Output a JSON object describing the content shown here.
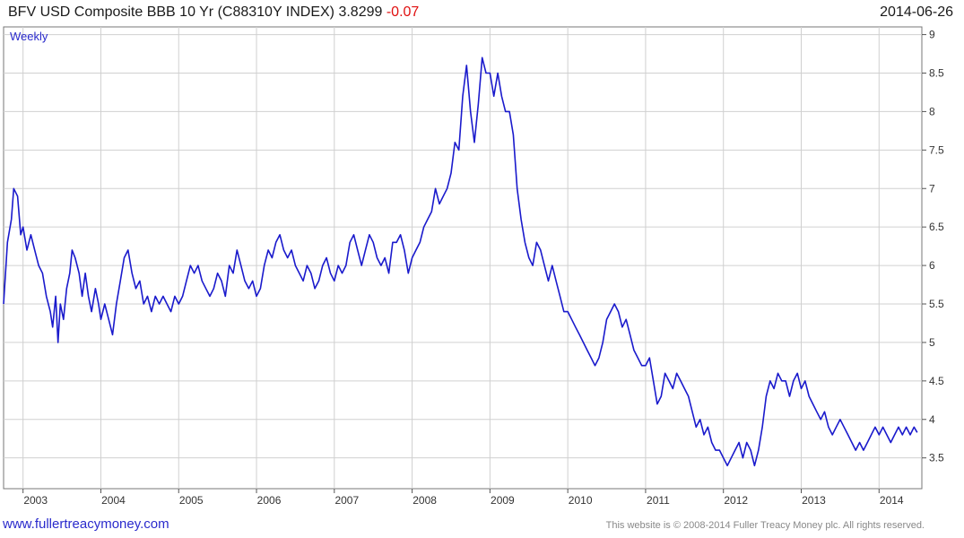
{
  "header": {
    "title": "BFV USD Composite BBB 10 Yr (C88310Y INDEX)",
    "last": "3.8299",
    "change": "-0.07",
    "date": "2014-06-26"
  },
  "footer": {
    "left": "www.fullertreacymoney.com",
    "right": "This website is © 2008-2014 Fuller Treacy Money plc. All rights reserved."
  },
  "colors": {
    "series": "#1a1acc",
    "grid": "#d0d0d0",
    "change": "#e01010"
  },
  "chart_data": {
    "type": "line",
    "period_label": "Weekly",
    "x_tick_labels": [
      "2003",
      "2004",
      "2005",
      "2006",
      "2007",
      "2008",
      "2009",
      "2010",
      "2011",
      "2012",
      "2013",
      "2014"
    ],
    "y_tick_labels": [
      "3.5",
      "4",
      "4.5",
      "5",
      "5.5",
      "6",
      "6.5",
      "7",
      "7.5",
      "8",
      "8.5",
      "9"
    ],
    "ylim": [
      3.1,
      9.1
    ],
    "xlim": [
      2002.75,
      2014.55
    ],
    "grid": true,
    "series": [
      {
        "values": [
          [
            2002.75,
            5.5
          ],
          [
            2002.8,
            6.3
          ],
          [
            2002.85,
            6.6
          ],
          [
            2002.88,
            7.0
          ],
          [
            2002.93,
            6.9
          ],
          [
            2002.97,
            6.4
          ],
          [
            2003.0,
            6.5
          ],
          [
            2003.05,
            6.2
          ],
          [
            2003.1,
            6.4
          ],
          [
            2003.15,
            6.2
          ],
          [
            2003.2,
            6.0
          ],
          [
            2003.25,
            5.9
          ],
          [
            2003.3,
            5.6
          ],
          [
            2003.35,
            5.4
          ],
          [
            2003.38,
            5.2
          ],
          [
            2003.42,
            5.6
          ],
          [
            2003.45,
            5.0
          ],
          [
            2003.48,
            5.5
          ],
          [
            2003.52,
            5.3
          ],
          [
            2003.56,
            5.7
          ],
          [
            2003.6,
            5.9
          ],
          [
            2003.63,
            6.2
          ],
          [
            2003.67,
            6.1
          ],
          [
            2003.72,
            5.9
          ],
          [
            2003.76,
            5.6
          ],
          [
            2003.8,
            5.9
          ],
          [
            2003.84,
            5.6
          ],
          [
            2003.88,
            5.4
          ],
          [
            2003.93,
            5.7
          ],
          [
            2003.97,
            5.5
          ],
          [
            2004.0,
            5.3
          ],
          [
            2004.05,
            5.5
          ],
          [
            2004.1,
            5.3
          ],
          [
            2004.15,
            5.1
          ],
          [
            2004.2,
            5.5
          ],
          [
            2004.25,
            5.8
          ],
          [
            2004.3,
            6.1
          ],
          [
            2004.35,
            6.2
          ],
          [
            2004.4,
            5.9
          ],
          [
            2004.45,
            5.7
          ],
          [
            2004.5,
            5.8
          ],
          [
            2004.55,
            5.5
          ],
          [
            2004.6,
            5.6
          ],
          [
            2004.65,
            5.4
          ],
          [
            2004.7,
            5.6
          ],
          [
            2004.75,
            5.5
          ],
          [
            2004.8,
            5.6
          ],
          [
            2004.85,
            5.5
          ],
          [
            2004.9,
            5.4
          ],
          [
            2004.95,
            5.6
          ],
          [
            2005.0,
            5.5
          ],
          [
            2005.05,
            5.6
          ],
          [
            2005.1,
            5.8
          ],
          [
            2005.15,
            6.0
          ],
          [
            2005.2,
            5.9
          ],
          [
            2005.25,
            6.0
          ],
          [
            2005.3,
            5.8
          ],
          [
            2005.35,
            5.7
          ],
          [
            2005.4,
            5.6
          ],
          [
            2005.45,
            5.7
          ],
          [
            2005.5,
            5.9
          ],
          [
            2005.55,
            5.8
          ],
          [
            2005.6,
            5.6
          ],
          [
            2005.65,
            6.0
          ],
          [
            2005.7,
            5.9
          ],
          [
            2005.75,
            6.2
          ],
          [
            2005.8,
            6.0
          ],
          [
            2005.85,
            5.8
          ],
          [
            2005.9,
            5.7
          ],
          [
            2005.95,
            5.8
          ],
          [
            2006.0,
            5.6
          ],
          [
            2006.05,
            5.7
          ],
          [
            2006.1,
            6.0
          ],
          [
            2006.15,
            6.2
          ],
          [
            2006.2,
            6.1
          ],
          [
            2006.25,
            6.3
          ],
          [
            2006.3,
            6.4
          ],
          [
            2006.35,
            6.2
          ],
          [
            2006.4,
            6.1
          ],
          [
            2006.45,
            6.2
          ],
          [
            2006.5,
            6.0
          ],
          [
            2006.55,
            5.9
          ],
          [
            2006.6,
            5.8
          ],
          [
            2006.65,
            6.0
          ],
          [
            2006.7,
            5.9
          ],
          [
            2006.75,
            5.7
          ],
          [
            2006.8,
            5.8
          ],
          [
            2006.85,
            6.0
          ],
          [
            2006.9,
            6.1
          ],
          [
            2006.95,
            5.9
          ],
          [
            2007.0,
            5.8
          ],
          [
            2007.05,
            6.0
          ],
          [
            2007.1,
            5.9
          ],
          [
            2007.15,
            6.0
          ],
          [
            2007.2,
            6.3
          ],
          [
            2007.25,
            6.4
          ],
          [
            2007.3,
            6.2
          ],
          [
            2007.35,
            6.0
          ],
          [
            2007.4,
            6.2
          ],
          [
            2007.45,
            6.4
          ],
          [
            2007.5,
            6.3
          ],
          [
            2007.55,
            6.1
          ],
          [
            2007.6,
            6.0
          ],
          [
            2007.65,
            6.1
          ],
          [
            2007.7,
            5.9
          ],
          [
            2007.75,
            6.3
          ],
          [
            2007.8,
            6.3
          ],
          [
            2007.85,
            6.4
          ],
          [
            2007.9,
            6.2
          ],
          [
            2007.95,
            5.9
          ],
          [
            2008.0,
            6.1
          ],
          [
            2008.05,
            6.2
          ],
          [
            2008.1,
            6.3
          ],
          [
            2008.15,
            6.5
          ],
          [
            2008.2,
            6.6
          ],
          [
            2008.25,
            6.7
          ],
          [
            2008.3,
            7.0
          ],
          [
            2008.35,
            6.8
          ],
          [
            2008.4,
            6.9
          ],
          [
            2008.45,
            7.0
          ],
          [
            2008.5,
            7.2
          ],
          [
            2008.55,
            7.6
          ],
          [
            2008.6,
            7.5
          ],
          [
            2008.65,
            8.2
          ],
          [
            2008.7,
            8.6
          ],
          [
            2008.75,
            8.0
          ],
          [
            2008.8,
            7.6
          ],
          [
            2008.85,
            8.1
          ],
          [
            2008.9,
            8.7
          ],
          [
            2008.95,
            8.5
          ],
          [
            2009.0,
            8.5
          ],
          [
            2009.05,
            8.2
          ],
          [
            2009.1,
            8.5
          ],
          [
            2009.15,
            8.2
          ],
          [
            2009.2,
            8.0
          ],
          [
            2009.25,
            8.0
          ],
          [
            2009.3,
            7.7
          ],
          [
            2009.35,
            7.0
          ],
          [
            2009.4,
            6.6
          ],
          [
            2009.45,
            6.3
          ],
          [
            2009.5,
            6.1
          ],
          [
            2009.55,
            6.0
          ],
          [
            2009.6,
            6.3
          ],
          [
            2009.65,
            6.2
          ],
          [
            2009.7,
            6.0
          ],
          [
            2009.75,
            5.8
          ],
          [
            2009.8,
            6.0
          ],
          [
            2009.85,
            5.8
          ],
          [
            2009.9,
            5.6
          ],
          [
            2009.95,
            5.4
          ],
          [
            2010.0,
            5.4
          ],
          [
            2010.05,
            5.3
          ],
          [
            2010.1,
            5.2
          ],
          [
            2010.15,
            5.1
          ],
          [
            2010.2,
            5.0
          ],
          [
            2010.25,
            4.9
          ],
          [
            2010.3,
            4.8
          ],
          [
            2010.35,
            4.7
          ],
          [
            2010.4,
            4.8
          ],
          [
            2010.45,
            5.0
          ],
          [
            2010.5,
            5.3
          ],
          [
            2010.55,
            5.4
          ],
          [
            2010.6,
            5.5
          ],
          [
            2010.65,
            5.4
          ],
          [
            2010.7,
            5.2
          ],
          [
            2010.75,
            5.3
          ],
          [
            2010.8,
            5.1
          ],
          [
            2010.85,
            4.9
          ],
          [
            2010.9,
            4.8
          ],
          [
            2010.95,
            4.7
          ],
          [
            2011.0,
            4.7
          ],
          [
            2011.05,
            4.8
          ],
          [
            2011.1,
            4.5
          ],
          [
            2011.15,
            4.2
          ],
          [
            2011.2,
            4.3
          ],
          [
            2011.25,
            4.6
          ],
          [
            2011.3,
            4.5
          ],
          [
            2011.35,
            4.4
          ],
          [
            2011.4,
            4.6
          ],
          [
            2011.45,
            4.5
          ],
          [
            2011.5,
            4.4
          ],
          [
            2011.55,
            4.3
          ],
          [
            2011.6,
            4.1
          ],
          [
            2011.65,
            3.9
          ],
          [
            2011.7,
            4.0
          ],
          [
            2011.75,
            3.8
          ],
          [
            2011.8,
            3.9
          ],
          [
            2011.85,
            3.7
          ],
          [
            2011.9,
            3.6
          ],
          [
            2011.95,
            3.6
          ],
          [
            2012.0,
            3.5
          ],
          [
            2012.05,
            3.4
          ],
          [
            2012.1,
            3.5
          ],
          [
            2012.15,
            3.6
          ],
          [
            2012.2,
            3.7
          ],
          [
            2012.25,
            3.5
          ],
          [
            2012.3,
            3.7
          ],
          [
            2012.35,
            3.6
          ],
          [
            2012.4,
            3.4
          ],
          [
            2012.45,
            3.6
          ],
          [
            2012.5,
            3.9
          ],
          [
            2012.55,
            4.3
          ],
          [
            2012.6,
            4.5
          ],
          [
            2012.65,
            4.4
          ],
          [
            2012.7,
            4.6
          ],
          [
            2012.75,
            4.5
          ],
          [
            2012.8,
            4.5
          ],
          [
            2012.85,
            4.3
          ],
          [
            2012.9,
            4.5
          ],
          [
            2012.95,
            4.6
          ],
          [
            2013.0,
            4.4
          ],
          [
            2013.05,
            4.5
          ],
          [
            2013.1,
            4.3
          ],
          [
            2013.15,
            4.2
          ],
          [
            2013.2,
            4.1
          ],
          [
            2013.25,
            4.0
          ],
          [
            2013.3,
            4.1
          ],
          [
            2013.35,
            3.9
          ],
          [
            2013.4,
            3.8
          ],
          [
            2013.45,
            3.9
          ],
          [
            2013.5,
            4.0
          ],
          [
            2013.55,
            3.9
          ],
          [
            2013.6,
            3.8
          ],
          [
            2013.65,
            3.7
          ],
          [
            2013.7,
            3.6
          ],
          [
            2013.75,
            3.7
          ],
          [
            2013.8,
            3.6
          ],
          [
            2013.85,
            3.7
          ],
          [
            2013.9,
            3.8
          ],
          [
            2013.95,
            3.9
          ],
          [
            2014.0,
            3.8
          ],
          [
            2014.05,
            3.9
          ],
          [
            2014.1,
            3.8
          ],
          [
            2014.15,
            3.7
          ],
          [
            2014.2,
            3.8
          ],
          [
            2014.25,
            3.9
          ],
          [
            2014.3,
            3.8
          ],
          [
            2014.35,
            3.9
          ],
          [
            2014.4,
            3.8
          ],
          [
            2014.45,
            3.9
          ],
          [
            2014.49,
            3.83
          ]
        ]
      }
    ]
  }
}
